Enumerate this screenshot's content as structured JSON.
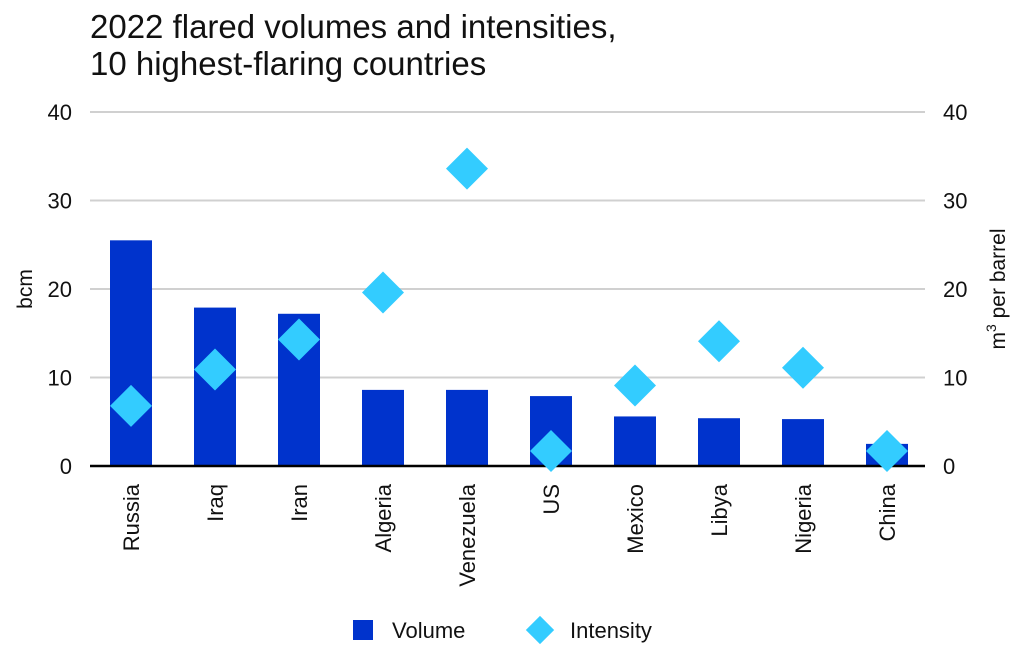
{
  "chart_data": {
    "type": "bar",
    "title_lines": [
      "2022 flared volumes and intensities,",
      "10 highest-flaring countries"
    ],
    "categories": [
      "Russia",
      "Iraq",
      "Iran",
      "Algeria",
      "Venezuela",
      "US",
      "Mexico",
      "Libya",
      "Nigeria",
      "China"
    ],
    "series": [
      {
        "name": "Volume",
        "type": "bar",
        "axis": "left",
        "values": [
          25.5,
          17.9,
          17.2,
          8.6,
          8.6,
          7.9,
          5.6,
          5.4,
          5.3,
          2.5
        ]
      },
      {
        "name": "Intensity",
        "type": "scatter",
        "axis": "right",
        "values": [
          6.8,
          10.9,
          14.3,
          19.6,
          33.6,
          1.7,
          9.1,
          14.1,
          11.1,
          1.7
        ]
      }
    ],
    "ylabel_left": "bcm",
    "ylabel_right_base": "m",
    "ylabel_right_sup": "3",
    "ylabel_right_rest": " per barrel",
    "ylim": [
      0,
      40
    ],
    "yticks": [
      "0",
      "10",
      "20",
      "30",
      "40"
    ],
    "grid": true,
    "legend_position": "bottom-center"
  },
  "colors": {
    "bar": "#0033cc",
    "marker": "#33ccff",
    "grid": "#d0d0d0",
    "axis": "#000000"
  }
}
